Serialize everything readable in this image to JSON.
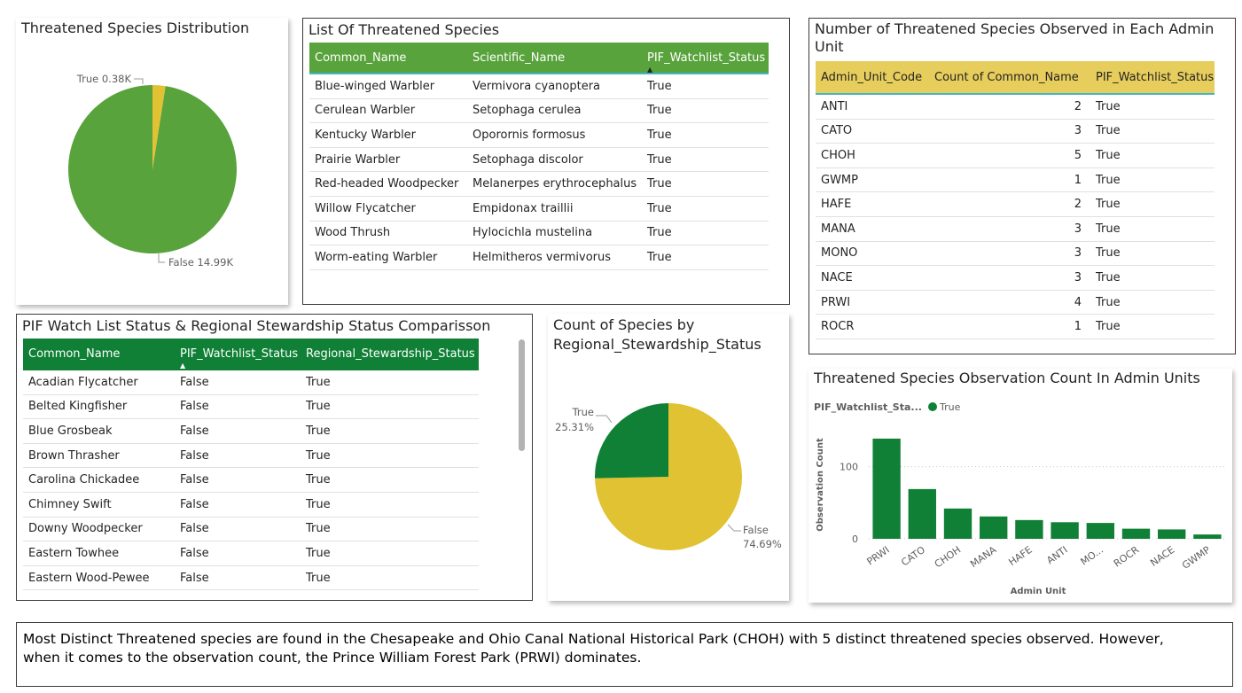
{
  "pie1": {
    "title": "Threatened Species Distribution",
    "label_true": "True 0.38K",
    "label_false": "False 14.99K",
    "colors": {
      "true": "#e0c232",
      "false": "#59a33c"
    }
  },
  "list1": {
    "title": "List Of Threatened Species",
    "headers": [
      "Common_Name",
      "Scientific_Name",
      "PIF_Watchlist_Status"
    ],
    "header_color": "#59a33c",
    "rows": [
      [
        "Blue-winged Warbler",
        "Vermivora cyanoptera",
        "True"
      ],
      [
        "Cerulean Warbler",
        "Setophaga cerulea",
        "True"
      ],
      [
        "Kentucky Warbler",
        "Oporornis formosus",
        "True"
      ],
      [
        "Prairie Warbler",
        "Setophaga discolor",
        "True"
      ],
      [
        "Red-headed Woodpecker",
        "Melanerpes erythrocephalus",
        "True"
      ],
      [
        "Willow Flycatcher",
        "Empidonax traillii",
        "True"
      ],
      [
        "Wood Thrush",
        "Hylocichla mustelina",
        "True"
      ],
      [
        "Worm-eating Warbler",
        "Helmitheros vermivorus",
        "True"
      ]
    ]
  },
  "list2": {
    "title": "Number of Threatened Species Observed in Each Admin Unit",
    "headers": [
      "Admin_Unit_Code",
      "Count of Common_Name",
      "PIF_Watchlist_Status"
    ],
    "header_color": "#e6cd5c",
    "rows": [
      [
        "ANTI",
        "2",
        "True"
      ],
      [
        "CATO",
        "3",
        "True"
      ],
      [
        "CHOH",
        "5",
        "True"
      ],
      [
        "GWMP",
        "1",
        "True"
      ],
      [
        "HAFE",
        "2",
        "True"
      ],
      [
        "MANA",
        "3",
        "True"
      ],
      [
        "MONO",
        "3",
        "True"
      ],
      [
        "NACE",
        "3",
        "True"
      ],
      [
        "PRWI",
        "4",
        "True"
      ],
      [
        "ROCR",
        "1",
        "True"
      ]
    ]
  },
  "list3": {
    "title": "PIF Watch List Status & Regional Stewardship Status Comparisson",
    "headers": [
      "Common_Name",
      "PIF_Watchlist_Status",
      "Regional_Stewardship_Status"
    ],
    "header_color": "#0f8035",
    "rows": [
      [
        "Acadian Flycatcher",
        "False",
        "True"
      ],
      [
        "Belted Kingfisher",
        "False",
        "True"
      ],
      [
        "Blue Grosbeak",
        "False",
        "True"
      ],
      [
        "Brown Thrasher",
        "False",
        "True"
      ],
      [
        "Carolina Chickadee",
        "False",
        "True"
      ],
      [
        "Chimney Swift",
        "False",
        "True"
      ],
      [
        "Downy Woodpecker",
        "False",
        "True"
      ],
      [
        "Eastern Towhee",
        "False",
        "True"
      ],
      [
        "Eastern Wood-Pewee",
        "False",
        "True"
      ]
    ]
  },
  "pie2": {
    "title_line1": "Count of Species by",
    "title_line2": "Regional_Stewardship_Status",
    "label_true_name": "True",
    "label_true_pct": "25.31%",
    "label_false_name": "False",
    "label_false_pct": "74.69%",
    "colors": {
      "true": "#0f8035",
      "false": "#e0c232"
    }
  },
  "bar": {
    "title": "Threatened Species Observation Count In Admin Units",
    "legend_title": "PIF_Watchlist_Sta...",
    "legend_item": "True",
    "color": "#0f8035"
  },
  "note": {
    "text": "Most Distinct Threatened species are found in the Chesapeake and Ohio Canal National Historical Park (CHOH) with 5 distinct threatened species observed. However, when it comes to the observation count, the Prince William Forest Park (PRWI) dominates."
  },
  "chart_data": [
    {
      "type": "pie",
      "title": "Threatened Species Distribution",
      "labels": [
        "True",
        "False"
      ],
      "values": [
        380,
        14990
      ]
    },
    {
      "type": "pie",
      "title": "Count of Species by Regional_Stewardship_Status",
      "labels": [
        "True",
        "False"
      ],
      "values": [
        25.31,
        74.69
      ]
    },
    {
      "type": "bar",
      "title": "Threatened Species Observation Count In Admin Units",
      "categories": [
        "PRWI",
        "CATO",
        "CHOH",
        "MANA",
        "HAFE",
        "ANTI",
        "MO...",
        "ROCR",
        "NACE",
        "GWMP"
      ],
      "series": [
        {
          "name": "True",
          "values": [
            139,
            69,
            42,
            31,
            26,
            23,
            22,
            14,
            13,
            6
          ]
        }
      ],
      "xlabel": "Admin Unit",
      "ylabel": "Observation Count",
      "yticks": [
        0,
        100
      ],
      "ylim": [
        0,
        150
      ]
    }
  ]
}
